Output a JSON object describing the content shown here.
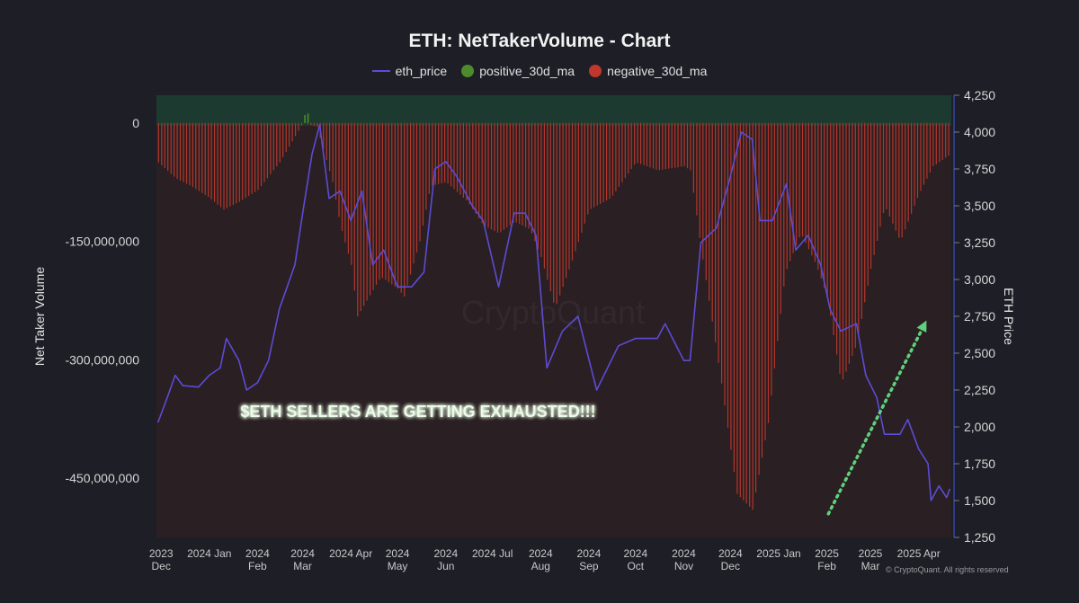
{
  "title": "ETH: NetTakerVolume - Chart",
  "legend": [
    {
      "label": "eth_price",
      "color": "#5b4cd6",
      "shape": "line"
    },
    {
      "label": "positive_30d_ma",
      "color": "#4c8c2b",
      "shape": "circle"
    },
    {
      "label": "negative_30d_ma",
      "color": "#c0382d",
      "shape": "circle"
    }
  ],
  "watermark": "CryptoQuant",
  "footer": "© CryptoQuant. All rights reserved",
  "chart_data": {
    "type": "bar",
    "title": "ETH: NetTakerVolume - Chart",
    "ylabel": "Net Taker Volume",
    "y2label": "ETH Price",
    "ylim": [
      -525000000,
      35000000
    ],
    "y2lim": [
      1250,
      4250
    ],
    "y_ticks": [
      0,
      -150000000,
      -300000000,
      -450000000
    ],
    "y_tick_labels": [
      "0",
      "-150,000,000",
      "-300,000,000",
      "-450,000,000"
    ],
    "y2_ticks": [
      4250,
      4000,
      3750,
      3500,
      3250,
      3000,
      2750,
      2500,
      2250,
      2000,
      1750,
      1500,
      1250
    ],
    "y2_tick_labels": [
      "4,250",
      "4,000",
      "3,750",
      "3,500",
      "3,250",
      "3,000",
      "2,750",
      "2,500",
      "2,250",
      "2,000",
      "1,750",
      "1,500",
      "1,250"
    ],
    "x_range": [
      "2023-11-28",
      "2025-04-22"
    ],
    "x_ticks": [
      {
        "date": "2023-12-01",
        "label": [
          "2023",
          "Dec"
        ]
      },
      {
        "date": "2024-01-01",
        "label": [
          "2024 Jan"
        ]
      },
      {
        "date": "2024-02-01",
        "label": [
          "2024",
          "Feb"
        ]
      },
      {
        "date": "2024-03-01",
        "label": [
          "2024",
          "Mar"
        ]
      },
      {
        "date": "2024-04-01",
        "label": [
          "2024 Apr"
        ]
      },
      {
        "date": "2024-05-01",
        "label": [
          "2024",
          "May"
        ]
      },
      {
        "date": "2024-06-01",
        "label": [
          "2024",
          "Jun"
        ]
      },
      {
        "date": "2024-07-01",
        "label": [
          "2024 Jul"
        ]
      },
      {
        "date": "2024-08-01",
        "label": [
          "2024",
          "Aug"
        ]
      },
      {
        "date": "2024-09-01",
        "label": [
          "2024",
          "Sep"
        ]
      },
      {
        "date": "2024-10-01",
        "label": [
          "2024",
          "Oct"
        ]
      },
      {
        "date": "2024-11-01",
        "label": [
          "2024",
          "Nov"
        ]
      },
      {
        "date": "2024-12-01",
        "label": [
          "2024",
          "Dec"
        ]
      },
      {
        "date": "2025-01-01",
        "label": [
          "2025 Jan"
        ]
      },
      {
        "date": "2025-02-01",
        "label": [
          "2025",
          "Feb"
        ]
      },
      {
        "date": "2025-03-01",
        "label": [
          "2025",
          "Mar"
        ]
      },
      {
        "date": "2025-04-01",
        "label": [
          "2025 Apr"
        ]
      }
    ],
    "series": [
      {
        "name": "negative_30d_ma",
        "type": "bar",
        "color": "#c0382d",
        "points": [
          [
            "2023-11-29",
            -50000000
          ],
          [
            "2023-12-10",
            -70000000
          ],
          [
            "2023-12-20",
            -80000000
          ],
          [
            "2024-01-01",
            -95000000
          ],
          [
            "2024-01-10",
            -110000000
          ],
          [
            "2024-01-20",
            -100000000
          ],
          [
            "2024-02-01",
            -85000000
          ],
          [
            "2024-02-15",
            -50000000
          ],
          [
            "2024-03-01",
            0
          ],
          [
            "2024-03-10",
            -5000000
          ],
          [
            "2024-03-20",
            -75000000
          ],
          [
            "2024-03-25",
            -130000000
          ],
          [
            "2024-04-01",
            -180000000
          ],
          [
            "2024-04-05",
            -245000000
          ],
          [
            "2024-04-20",
            -195000000
          ],
          [
            "2024-05-01",
            -210000000
          ],
          [
            "2024-05-05",
            -220000000
          ],
          [
            "2024-05-15",
            -150000000
          ],
          [
            "2024-05-22",
            -80000000
          ],
          [
            "2024-06-01",
            -75000000
          ],
          [
            "2024-06-15",
            -100000000
          ],
          [
            "2024-06-25",
            -130000000
          ],
          [
            "2024-07-05",
            -140000000
          ],
          [
            "2024-07-15",
            -125000000
          ],
          [
            "2024-07-25",
            -135000000
          ],
          [
            "2024-08-01",
            -170000000
          ],
          [
            "2024-08-10",
            -235000000
          ],
          [
            "2024-08-20",
            -180000000
          ],
          [
            "2024-09-01",
            -110000000
          ],
          [
            "2024-09-15",
            -95000000
          ],
          [
            "2024-10-01",
            -50000000
          ],
          [
            "2024-10-15",
            -60000000
          ],
          [
            "2024-11-01",
            -55000000
          ],
          [
            "2024-11-05",
            -60000000
          ],
          [
            "2024-11-12",
            -160000000
          ],
          [
            "2024-11-25",
            -330000000
          ],
          [
            "2024-12-05",
            -470000000
          ],
          [
            "2024-12-15",
            -490000000
          ],
          [
            "2024-12-25",
            -380000000
          ],
          [
            "2025-01-05",
            -190000000
          ],
          [
            "2025-01-15",
            -140000000
          ],
          [
            "2025-01-25",
            -180000000
          ],
          [
            "2025-02-01",
            -220000000
          ],
          [
            "2025-02-10",
            -330000000
          ],
          [
            "2025-02-20",
            -280000000
          ],
          [
            "2025-03-01",
            -185000000
          ],
          [
            "2025-03-10",
            -105000000
          ],
          [
            "2025-03-20",
            -150000000
          ],
          [
            "2025-04-01",
            -90000000
          ],
          [
            "2025-04-10",
            -55000000
          ],
          [
            "2025-04-21",
            -40000000
          ]
        ]
      },
      {
        "name": "positive_30d_ma",
        "type": "bar",
        "color": "#4c8c2b",
        "points": [
          [
            "2024-03-02",
            10000000
          ],
          [
            "2024-03-04",
            12000000
          ]
        ]
      },
      {
        "name": "eth_price",
        "type": "line",
        "color": "#5b4cd6",
        "points": [
          [
            "2023-11-29",
            2030
          ],
          [
            "2023-12-05",
            2200
          ],
          [
            "2023-12-10",
            2350
          ],
          [
            "2023-12-15",
            2280
          ],
          [
            "2023-12-25",
            2270
          ],
          [
            "2024-01-01",
            2350
          ],
          [
            "2024-01-08",
            2400
          ],
          [
            "2024-01-12",
            2600
          ],
          [
            "2024-01-20",
            2450
          ],
          [
            "2024-01-25",
            2250
          ],
          [
            "2024-02-01",
            2300
          ],
          [
            "2024-02-08",
            2450
          ],
          [
            "2024-02-15",
            2800
          ],
          [
            "2024-02-25",
            3100
          ],
          [
            "2024-03-01",
            3450
          ],
          [
            "2024-03-07",
            3850
          ],
          [
            "2024-03-12",
            4050
          ],
          [
            "2024-03-18",
            3550
          ],
          [
            "2024-03-25",
            3600
          ],
          [
            "2024-04-01",
            3400
          ],
          [
            "2024-04-08",
            3600
          ],
          [
            "2024-04-15",
            3100
          ],
          [
            "2024-04-22",
            3200
          ],
          [
            "2024-05-01",
            2950
          ],
          [
            "2024-05-10",
            2950
          ],
          [
            "2024-05-18",
            3050
          ],
          [
            "2024-05-25",
            3750
          ],
          [
            "2024-06-01",
            3800
          ],
          [
            "2024-06-08",
            3700
          ],
          [
            "2024-06-18",
            3500
          ],
          [
            "2024-06-25",
            3400
          ],
          [
            "2024-07-05",
            2950
          ],
          [
            "2024-07-15",
            3450
          ],
          [
            "2024-07-22",
            3450
          ],
          [
            "2024-07-29",
            3300
          ],
          [
            "2024-08-05",
            2400
          ],
          [
            "2024-08-15",
            2650
          ],
          [
            "2024-08-25",
            2750
          ],
          [
            "2024-09-06",
            2250
          ],
          [
            "2024-09-20",
            2550
          ],
          [
            "2024-10-01",
            2600
          ],
          [
            "2024-10-15",
            2600
          ],
          [
            "2024-10-20",
            2700
          ],
          [
            "2024-11-01",
            2450
          ],
          [
            "2024-11-05",
            2450
          ],
          [
            "2024-11-12",
            3250
          ],
          [
            "2024-11-22",
            3350
          ],
          [
            "2024-12-01",
            3700
          ],
          [
            "2024-12-08",
            4000
          ],
          [
            "2024-12-15",
            3950
          ],
          [
            "2024-12-20",
            3400
          ],
          [
            "2024-12-28",
            3400
          ],
          [
            "2025-01-06",
            3650
          ],
          [
            "2025-01-12",
            3200
          ],
          [
            "2025-01-20",
            3300
          ],
          [
            "2025-01-28",
            3100
          ],
          [
            "2025-02-03",
            2800
          ],
          [
            "2025-02-10",
            2650
          ],
          [
            "2025-02-20",
            2700
          ],
          [
            "2025-02-26",
            2350
          ],
          [
            "2025-03-05",
            2200
          ],
          [
            "2025-03-10",
            1950
          ],
          [
            "2025-03-20",
            1950
          ],
          [
            "2025-03-25",
            2050
          ],
          [
            "2025-04-01",
            1850
          ],
          [
            "2025-04-07",
            1750
          ],
          [
            "2025-04-09",
            1500
          ],
          [
            "2025-04-14",
            1600
          ],
          [
            "2025-04-19",
            1520
          ],
          [
            "2025-04-21",
            1580
          ]
        ]
      }
    ],
    "annotations": [
      {
        "type": "text",
        "text": "$ETH SELLERS ARE GETTING EXHAUSTED!!!",
        "color": "#eafbe6",
        "glow": "#2fbf52"
      },
      {
        "type": "arrow",
        "style": "dotted",
        "color": "#5fd07d",
        "from": [
          "2025-02-02",
          1410
        ],
        "to": [
          "2025-04-05",
          2700
        ]
      }
    ],
    "legend_position": "top-center",
    "grid": false
  }
}
